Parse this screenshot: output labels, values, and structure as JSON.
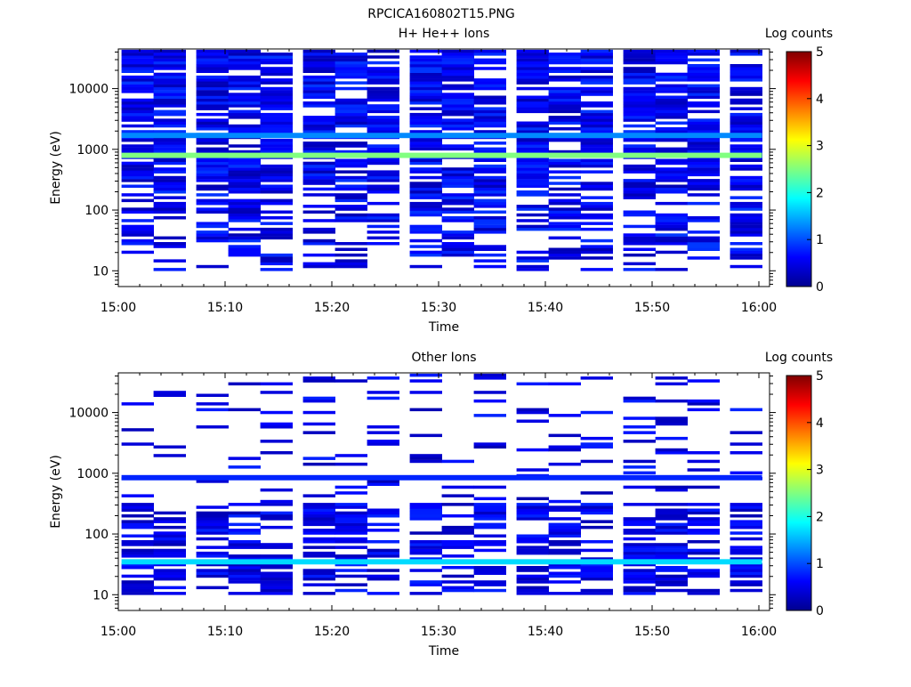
{
  "figure_title": "RPCICA160802T15.PNG",
  "chart_data": [
    {
      "type": "heatmap",
      "title": "H+ He++ Ions",
      "xlabel": "Time",
      "ylabel": "Energy (eV)",
      "y_scale": "log",
      "ylim": [
        5.5,
        45000
      ],
      "x_range": [
        "15:00",
        "16:01"
      ],
      "xticks": [
        "15:00",
        "15:10",
        "15:20",
        "15:30",
        "15:40",
        "15:50",
        "16:00"
      ],
      "yticks": [
        "10",
        "100",
        "1000",
        "10000"
      ],
      "colorbar": {
        "label": "Log counts",
        "min": 0,
        "max": 5,
        "ticks": [
          "0",
          "1",
          "2",
          "3",
          "4",
          "5"
        ]
      },
      "time_bins": [
        "15:00",
        "15:03",
        "15:07",
        "15:10",
        "15:13",
        "15:17",
        "15:20",
        "15:23",
        "15:27",
        "15:30",
        "15:33",
        "15:37",
        "15:40",
        "15:43",
        "15:47",
        "15:50",
        "15:53",
        "15:57"
      ],
      "features": [
        {
          "energy_eV": 800,
          "log_counts": 2.5,
          "note": "persistent band"
        },
        {
          "energy_eV": 1700,
          "log_counts": 1.3,
          "note": "persistent band"
        }
      ],
      "background_log_counts": [
        0.2,
        0.9
      ]
    },
    {
      "type": "heatmap",
      "title": "Other Ions",
      "xlabel": "Time",
      "ylabel": "Energy (eV)",
      "y_scale": "log",
      "ylim": [
        5.5,
        45000
      ],
      "x_range": [
        "15:00",
        "16:01"
      ],
      "xticks": [
        "15:00",
        "15:10",
        "15:20",
        "15:30",
        "15:40",
        "15:50",
        "16:00"
      ],
      "yticks": [
        "10",
        "100",
        "1000",
        "10000"
      ],
      "colorbar": {
        "label": "Log counts",
        "min": 0,
        "max": 5,
        "ticks": [
          "0",
          "1",
          "2",
          "3",
          "4",
          "5"
        ]
      },
      "time_bins": [
        "15:00",
        "15:03",
        "15:07",
        "15:10",
        "15:13",
        "15:17",
        "15:20",
        "15:23",
        "15:27",
        "15:30",
        "15:33",
        "15:37",
        "15:40",
        "15:43",
        "15:47",
        "15:50",
        "15:53",
        "15:57"
      ],
      "features": [
        {
          "energy_eV": 35,
          "log_counts": 1.7,
          "note": "persistent band"
        },
        {
          "energy_eV": 850,
          "log_counts": 0.8,
          "note": "persistent band"
        }
      ],
      "background_log_counts": [
        0.2,
        0.8
      ]
    }
  ]
}
